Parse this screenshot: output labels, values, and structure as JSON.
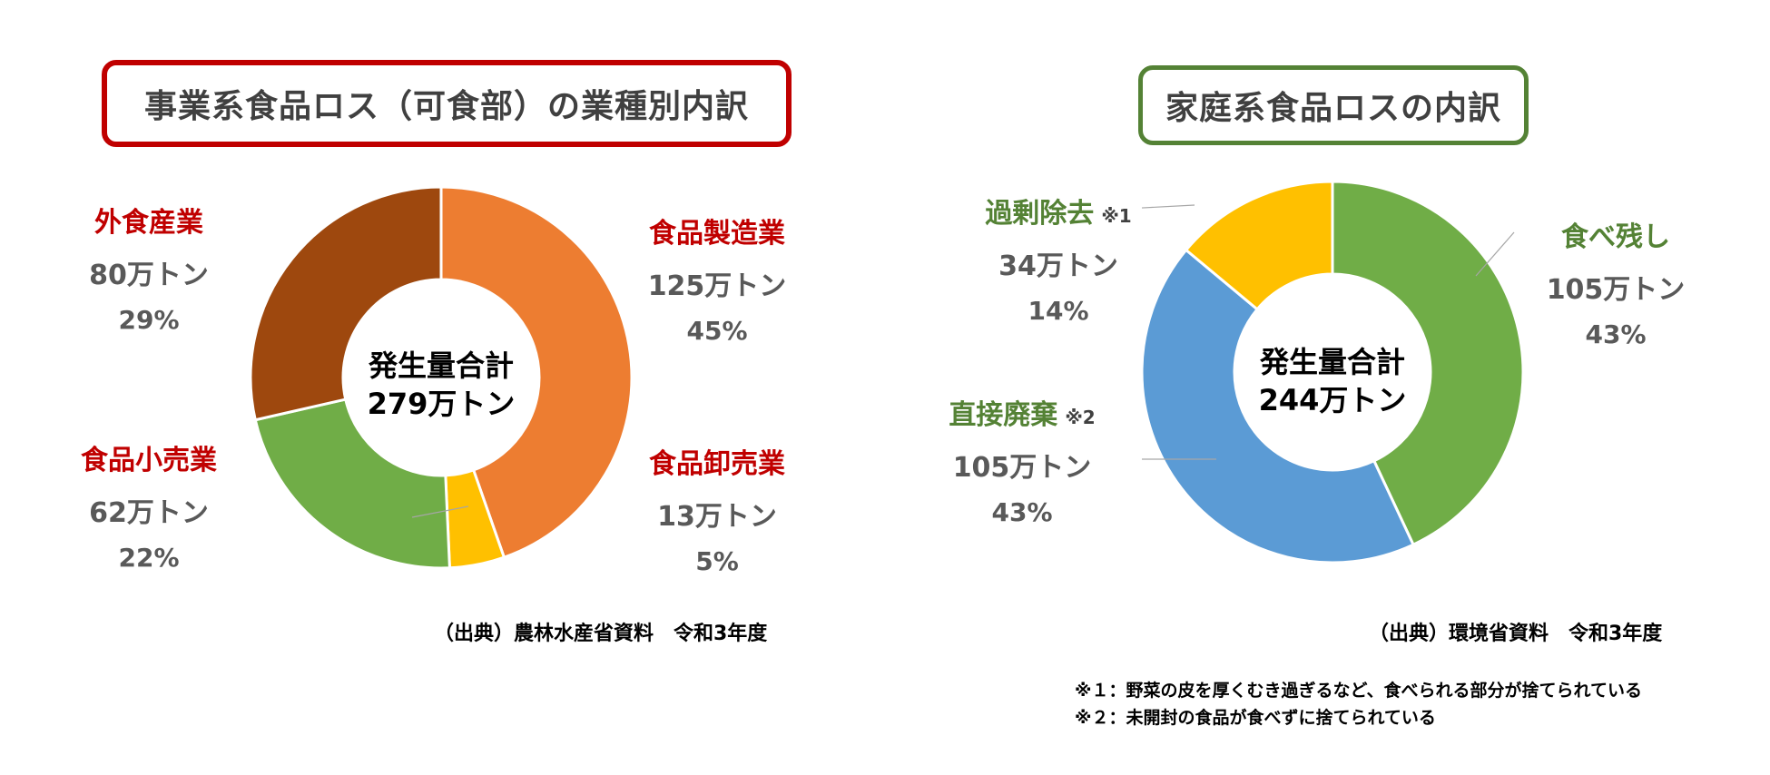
{
  "chart_data": [
    {
      "type": "pie",
      "title": "事業系食品ロス（可食部）の業種別内訳",
      "center_label": [
        "発生量合計",
        "279万トン"
      ],
      "slices": [
        {
          "name": "食品製造業",
          "value_label": "125万トン",
          "percent_label": "45%",
          "value": 125,
          "color": "#ed7d31"
        },
        {
          "name": "食品卸売業",
          "value_label": "13万トン",
          "percent_label": "5%",
          "value": 13,
          "color": "#ffc000"
        },
        {
          "name": "食品小売業",
          "value_label": "62万トン",
          "percent_label": "22%",
          "value": 62,
          "color": "#70ad47"
        },
        {
          "name": "外食産業",
          "value_label": "80万トン",
          "percent_label": "29%",
          "value": 80,
          "color": "#9e480e"
        }
      ],
      "source": "（出典）農林水産省資料　令和3年度",
      "border_color": "#c00000"
    },
    {
      "type": "pie",
      "title": "家庭系食品ロスの内訳",
      "center_label": [
        "発生量合計",
        "244万トン"
      ],
      "slices": [
        {
          "name": "食べ残し",
          "note": "",
          "value_label": "105万トン",
          "percent_label": "43%",
          "value": 105,
          "color": "#70ad47"
        },
        {
          "name": "直接廃棄",
          "note": "※2",
          "value_label": "105万トン",
          "percent_label": "43%",
          "value": 105,
          "color": "#5b9bd5"
        },
        {
          "name": "過剰除去",
          "note": "※1",
          "value_label": "34万トン",
          "percent_label": "14%",
          "value": 34,
          "color": "#ffc000"
        }
      ],
      "source": "（出典）環境省資料　令和3年度",
      "border_color": "#548235",
      "footnotes": [
        "※１：野菜の皮を厚くむき過ぎるなど、食べられる部分が捨てられている",
        "※２：未開封の食品が食べずに捨てられている"
      ]
    }
  ]
}
